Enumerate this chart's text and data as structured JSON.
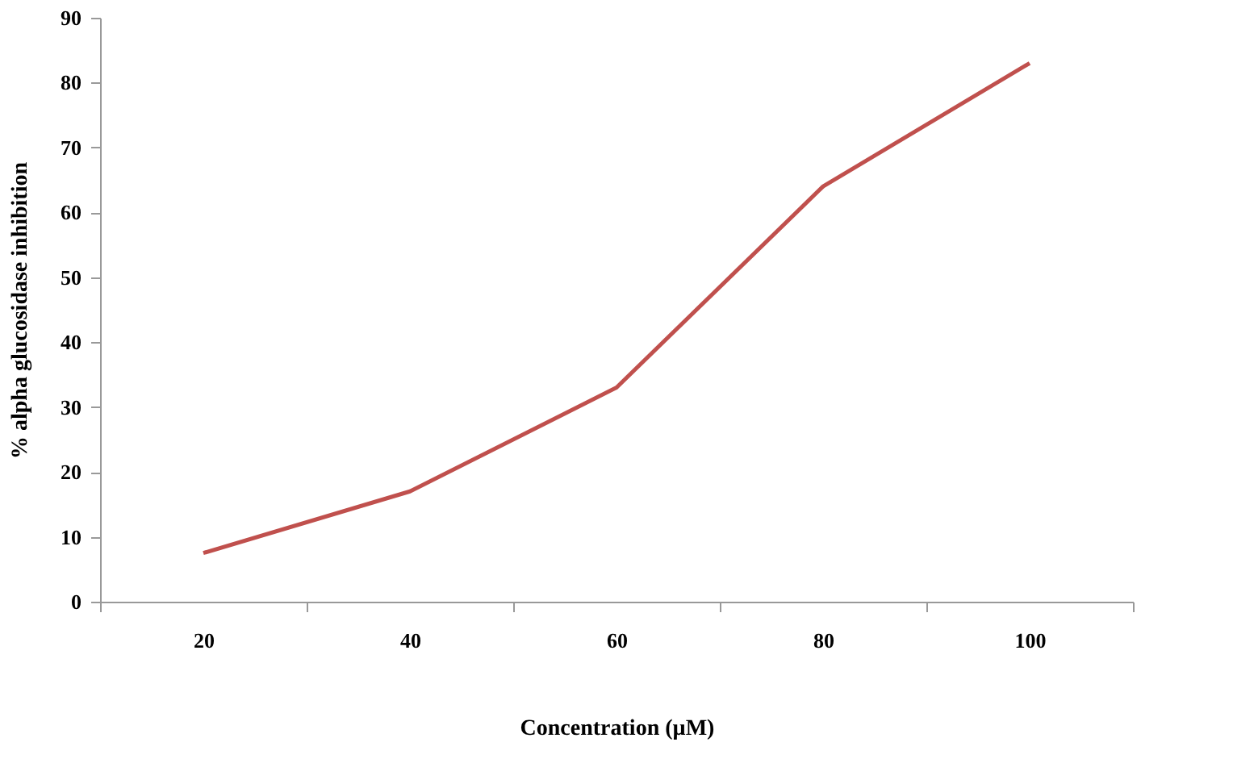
{
  "chart_data": {
    "type": "line",
    "xlabel": "Concentration  (µM)",
    "ylabel": "% alpha glucosidase inhibition",
    "categories": [
      "20",
      "40",
      "60",
      "80",
      "100"
    ],
    "values": [
      7.5,
      17,
      33,
      64,
      83
    ],
    "color": "#c0504d",
    "ylim": [
      0,
      90
    ],
    "yticks": [
      0,
      10,
      20,
      30,
      40,
      50,
      60,
      70,
      80,
      90
    ],
    "grid": false
  }
}
